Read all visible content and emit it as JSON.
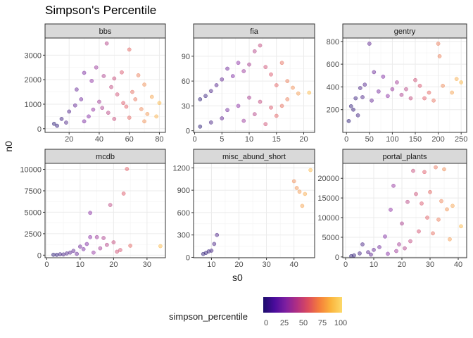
{
  "chart_data": {
    "type": "scatter",
    "title": "Simpson's Percentile",
    "xlabel": "s0",
    "ylabel": "n0",
    "legend": {
      "title": "simpson_percentile",
      "placement": "bottom",
      "range": [
        0,
        100
      ],
      "ticks": [
        "0",
        "25",
        "50",
        "75",
        "100"
      ],
      "colors": [
        "#1b0c6b",
        "#7e1fa0",
        "#dc4c5c",
        "#fbb43c"
      ]
    },
    "grid": true,
    "point_alpha": 0.45,
    "panels": [
      {
        "name": "bbs",
        "xlim": [
          4,
          84
        ],
        "ylim": [
          -150,
          3700
        ],
        "xticks": [
          20,
          40,
          60,
          80
        ],
        "yticks": [
          0,
          1000,
          2000,
          3000
        ],
        "ytick_labels": [
          "0",
          "1000",
          "2000",
          "3000"
        ],
        "points": [
          [
            45,
            3480
          ],
          [
            60,
            3230
          ],
          [
            38,
            2500
          ],
          [
            30,
            2280
          ],
          [
            43,
            2150
          ],
          [
            50,
            2050
          ],
          [
            55,
            2300
          ],
          [
            66,
            2180
          ],
          [
            70,
            1800
          ],
          [
            35,
            1950
          ],
          [
            25,
            1600
          ],
          [
            62,
            1500
          ],
          [
            48,
            1700
          ],
          [
            75,
            1300
          ],
          [
            80,
            1050
          ],
          [
            28,
            1200
          ],
          [
            52,
            1400
          ],
          [
            40,
            1100
          ],
          [
            58,
            900
          ],
          [
            68,
            800
          ],
          [
            72,
            600
          ],
          [
            20,
            700
          ],
          [
            15,
            400
          ],
          [
            10,
            200
          ],
          [
            33,
            500
          ],
          [
            46,
            650
          ],
          [
            64,
            1200
          ],
          [
            56,
            1050
          ],
          [
            42,
            850
          ],
          [
            36,
            780
          ],
          [
            24,
            950
          ],
          [
            78,
            500
          ],
          [
            30,
            300
          ],
          [
            50,
            400
          ],
          [
            60,
            450
          ],
          [
            70,
            300
          ],
          [
            18,
            250
          ],
          [
            12,
            120
          ]
        ]
      },
      {
        "name": "fia",
        "xlim": [
          -0.2,
          22
        ],
        "ylim": [
          -2,
          112
        ],
        "xticks": [
          0,
          5,
          10,
          15,
          20
        ],
        "yticks": [
          0,
          30,
          60,
          90
        ],
        "ytick_labels": [
          "0",
          "30",
          "60",
          "90"
        ],
        "points": [
          [
            12,
            103
          ],
          [
            11,
            96
          ],
          [
            8,
            82
          ],
          [
            10,
            80
          ],
          [
            13,
            77
          ],
          [
            16,
            82
          ],
          [
            6,
            75
          ],
          [
            9,
            72
          ],
          [
            14,
            68
          ],
          [
            7,
            66
          ],
          [
            5,
            62
          ],
          [
            17,
            60
          ],
          [
            15,
            55
          ],
          [
            18,
            52
          ],
          [
            4,
            55
          ],
          [
            3,
            48
          ],
          [
            19,
            45
          ],
          [
            21,
            46
          ],
          [
            2,
            42
          ],
          [
            1,
            38
          ],
          [
            10,
            40
          ],
          [
            12,
            35
          ],
          [
            8,
            30
          ],
          [
            6,
            25
          ],
          [
            14,
            28
          ],
          [
            16,
            30
          ],
          [
            11,
            20
          ],
          [
            5,
            15
          ],
          [
            3,
            10
          ],
          [
            1,
            5
          ],
          [
            9,
            12
          ],
          [
            13,
            8
          ],
          [
            15,
            18
          ],
          [
            17,
            38
          ]
        ]
      },
      {
        "name": "gentry",
        "xlim": [
          -8,
          262
        ],
        "ylim": [
          0,
          830
        ],
        "xticks": [
          0,
          50,
          100,
          150,
          200,
          250
        ],
        "yticks": [
          200,
          400,
          600,
          800
        ],
        "ytick_labels": [
          "200",
          "400",
          "600",
          "800"
        ],
        "points": [
          [
            50,
            780
          ],
          [
            200,
            780
          ],
          [
            203,
            670
          ],
          [
            10,
            230
          ],
          [
            20,
            300
          ],
          [
            30,
            390
          ],
          [
            40,
            420
          ],
          [
            60,
            530
          ],
          [
            80,
            490
          ],
          [
            100,
            380
          ],
          [
            120,
            330
          ],
          [
            150,
            460
          ],
          [
            170,
            300
          ],
          [
            180,
            350
          ],
          [
            210,
            410
          ],
          [
            240,
            470
          ],
          [
            250,
            440
          ],
          [
            230,
            350
          ],
          [
            90,
            320
          ],
          [
            110,
            440
          ],
          [
            140,
            300
          ],
          [
            160,
            410
          ],
          [
            70,
            360
          ],
          [
            25,
            150
          ],
          [
            5,
            100
          ],
          [
            15,
            200
          ],
          [
            35,
            310
          ],
          [
            55,
            280
          ],
          [
            130,
            380
          ],
          [
            190,
            280
          ]
        ]
      },
      {
        "name": "mcdb",
        "xlim": [
          -0.5,
          35.5
        ],
        "ylim": [
          -300,
          10700
        ],
        "xticks": [
          0,
          10,
          20,
          30
        ],
        "yticks": [
          0,
          2500,
          5000,
          7500,
          10000
        ],
        "ytick_labels": [
          "0",
          "2500",
          "5000",
          "7500",
          "10000"
        ],
        "points": [
          [
            24,
            10050
          ],
          [
            23,
            7180
          ],
          [
            19,
            5850
          ],
          [
            13,
            4930
          ],
          [
            34,
            1050
          ],
          [
            15,
            2100
          ],
          [
            17,
            2000
          ],
          [
            20,
            1500
          ],
          [
            18,
            1200
          ],
          [
            12,
            1300
          ],
          [
            10,
            1000
          ],
          [
            16,
            800
          ],
          [
            22,
            600
          ],
          [
            8,
            500
          ],
          [
            14,
            300
          ],
          [
            6,
            200
          ],
          [
            4,
            100
          ],
          [
            2,
            50
          ],
          [
            11,
            700
          ],
          [
            21,
            400
          ],
          [
            9,
            150
          ],
          [
            7,
            300
          ],
          [
            5,
            80
          ],
          [
            3,
            40
          ],
          [
            25,
            1100
          ],
          [
            13,
            2100
          ]
        ]
      },
      {
        "name": "misc_abund_short",
        "xlim": [
          3.5,
          47.5
        ],
        "ylim": [
          -5,
          1260
        ],
        "xticks": [
          10,
          20,
          30,
          40
        ],
        "yticks": [
          0,
          300,
          600,
          900,
          1200
        ],
        "ytick_labels": [
          "0",
          "300",
          "600",
          "900",
          "1200"
        ],
        "points": [
          [
            46,
            1170
          ],
          [
            40,
            1020
          ],
          [
            41,
            930
          ],
          [
            42,
            880
          ],
          [
            44,
            850
          ],
          [
            43,
            690
          ],
          [
            12,
            300
          ],
          [
            11,
            180
          ],
          [
            10,
            90
          ],
          [
            8,
            60
          ],
          [
            7,
            45
          ],
          [
            9,
            80
          ]
        ]
      },
      {
        "name": "portal_plants",
        "xlim": [
          -1,
          43
        ],
        "ylim": [
          -200,
          23800
        ],
        "xticks": [
          0,
          10,
          20,
          30,
          40
        ],
        "yticks": [
          0,
          5000,
          10000,
          15000,
          20000
        ],
        "ytick_labels": [
          "0",
          "5000",
          "10000",
          "15000",
          "20000"
        ],
        "points": [
          [
            32,
            22800
          ],
          [
            24,
            21900
          ],
          [
            28,
            21600
          ],
          [
            35,
            22300
          ],
          [
            17,
            18100
          ],
          [
            30,
            16500
          ],
          [
            25,
            16000
          ],
          [
            34,
            14200
          ],
          [
            22,
            14000
          ],
          [
            27,
            13600
          ],
          [
            38,
            13000
          ],
          [
            36,
            12100
          ],
          [
            16,
            12000
          ],
          [
            41,
            7800
          ],
          [
            29,
            10000
          ],
          [
            33,
            9500
          ],
          [
            20,
            8500
          ],
          [
            26,
            6500
          ],
          [
            31,
            6000
          ],
          [
            14,
            5200
          ],
          [
            37,
            4500
          ],
          [
            23,
            4000
          ],
          [
            19,
            3200
          ],
          [
            12,
            2500
          ],
          [
            10,
            1800
          ],
          [
            8,
            1200
          ],
          [
            5,
            900
          ],
          [
            3,
            400
          ],
          [
            2,
            200
          ],
          [
            6,
            3200
          ],
          [
            15,
            800
          ],
          [
            18,
            1500
          ],
          [
            21,
            2200
          ],
          [
            9,
            600
          ]
        ]
      }
    ]
  }
}
